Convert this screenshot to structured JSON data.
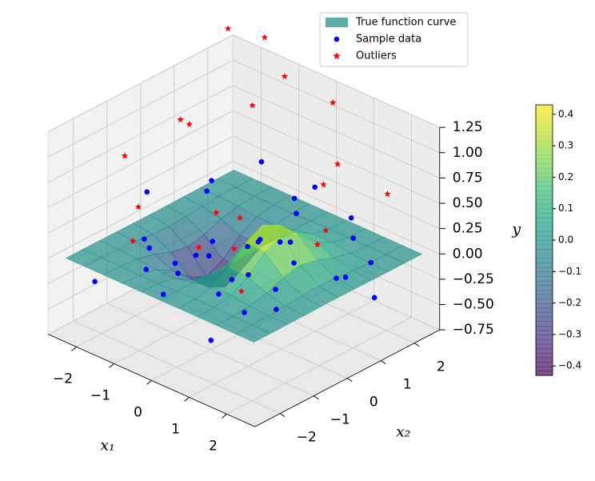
{
  "chart_data": {
    "type": "surface3d",
    "xlabel": "x₁",
    "ylabel": "x₂",
    "zlabel": "y",
    "xlim": [
      -2.75,
      2.75
    ],
    "xticks": [
      {
        "value": -2,
        "label": "−2"
      },
      {
        "value": -1,
        "label": "−1"
      },
      0,
      1,
      2
    ],
    "ylim": [
      -2.75,
      2.75
    ],
    "yticks": [
      {
        "value": -2,
        "label": "−2"
      },
      {
        "value": -1,
        "label": "−1"
      },
      0,
      1,
      2
    ],
    "zlim": [
      -0.75,
      1.25
    ],
    "zticks": [
      {
        "value": -0.75,
        "label": "−0.75"
      },
      {
        "value": -0.5,
        "label": "−0.50"
      },
      {
        "value": -0.25,
        "label": "−0.25"
      },
      {
        "value": 0,
        "label": "0.00"
      },
      0.25,
      {
        "value": 0.5,
        "label": "0.50"
      },
      0.75,
      {
        "value": 1,
        "label": "1.00"
      },
      1.25
    ],
    "grid": true,
    "legend": "upper right",
    "surface": {
      "name": "True function curve",
      "color": "#5eaca8",
      "cmap": "viridis",
      "alpha": 0.7,
      "x": [
        -2.5,
        -2,
        -1.5,
        -1,
        -0.5,
        0,
        0.5,
        1,
        1.5,
        2,
        2.5
      ],
      "y": [
        -2.5,
        -2,
        -1.5,
        -1,
        -0.5,
        0,
        0.5,
        1,
        1.5,
        2,
        2.5
      ],
      "z": [
        [
          0,
          0,
          -0.001,
          -0.002,
          -0.004,
          -0.005,
          -0.004,
          -0.002,
          -0.001,
          0,
          0
        ],
        [
          0,
          -0.001,
          -0.004,
          -0.013,
          -0.029,
          -0.037,
          -0.029,
          -0.013,
          -0.004,
          -0.001,
          0
        ],
        [
          0,
          -0.003,
          -0.017,
          -0.058,
          -0.123,
          -0.158,
          -0.123,
          -0.058,
          -0.017,
          -0.003,
          0
        ],
        [
          -0.001,
          -0.007,
          -0.039,
          -0.135,
          -0.287,
          -0.368,
          -0.287,
          -0.135,
          -0.039,
          -0.007,
          -0.001
        ],
        [
          -0.001,
          -0.007,
          -0.041,
          -0.143,
          -0.303,
          -0.389,
          -0.303,
          -0.143,
          -0.041,
          -0.007,
          -0.001
        ],
        [
          0,
          0,
          0,
          0,
          0,
          0,
          0,
          0,
          0,
          0,
          0
        ],
        [
          0.001,
          0.007,
          0.041,
          0.143,
          0.303,
          0.389,
          0.303,
          0.143,
          0.041,
          0.007,
          0.001
        ],
        [
          0.001,
          0.007,
          0.039,
          0.135,
          0.287,
          0.368,
          0.287,
          0.135,
          0.039,
          0.007,
          0.001
        ],
        [
          0,
          0.003,
          0.017,
          0.058,
          0.123,
          0.158,
          0.123,
          0.058,
          0.017,
          0.003,
          0
        ],
        [
          0,
          0.001,
          0.004,
          0.013,
          0.029,
          0.037,
          0.029,
          0.013,
          0.004,
          0.001,
          0
        ],
        [
          0,
          0,
          0.001,
          0.002,
          0.004,
          0.005,
          0.004,
          0.002,
          0.001,
          0,
          0
        ]
      ]
    },
    "series": [
      {
        "name": "Sample data",
        "color": "#0000ff",
        "marker": "circle",
        "x": [
          -2.2,
          -1.8,
          -1.5,
          -1.2,
          -0.9,
          -0.6,
          -0.3,
          0.1,
          0.4,
          0.7,
          1.0,
          1.3,
          1.6,
          1.9,
          2.2,
          -2.0,
          -1.4,
          -0.8,
          -0.2,
          0.3,
          0.9,
          1.5,
          2.1,
          -1.7,
          -1.0,
          -0.4,
          0.5,
          1.2,
          1.8,
          2.4,
          -2.4,
          -0.5,
          0.8,
          1.1,
          -1.1,
          0.0
        ],
        "y": [
          1.5,
          -0.8,
          2.2,
          0.3,
          -1.9,
          1.1,
          -0.6,
          2.0,
          -1.2,
          0.6,
          -2.1,
          1.8,
          -0.3,
          0.9,
          -1.5,
          -2.2,
          -1.4,
          2.4,
          1.3,
          -2.3,
          -0.9,
          2.1,
          0.4,
          0.8,
          1.6,
          -1.6,
          1.0,
          -0.4,
          -2.0,
          1.2,
          -0.2,
          0.2,
          2.3,
          -1.1,
          -0.2,
          -2.4
        ],
        "z": [
          0.12,
          -0.08,
          0.3,
          -0.25,
          0.05,
          -0.15,
          0.2,
          0.35,
          -0.1,
          0.15,
          -0.3,
          0.08,
          0.25,
          -0.05,
          0.1,
          -0.2,
          0.18,
          0.02,
          -0.12,
          0.28,
          0.4,
          -0.18,
          0.06,
          0.22,
          -0.28,
          0.14,
          0.33,
          -0.06,
          0.09,
          -0.22,
          0.27,
          -0.35,
          0.11,
          0.19,
          -0.14,
          0.04
        ]
      },
      {
        "name": "Outliers",
        "color": "#ff0000",
        "marker": "star",
        "x": [
          -2.3,
          -1.9,
          -1.2,
          -0.7,
          -0.2,
          0.4,
          0.9,
          1.4,
          1.9,
          2.3,
          -1.6,
          -0.9,
          0.1,
          0.7,
          1.2,
          2.0,
          -2.1,
          -0.4,
          0.5,
          1.6,
          -1.3,
          2.4
        ],
        "y": [
          2.1,
          0.5,
          -1.8,
          1.4,
          -0.6,
          2.2,
          -1.3,
          0.8,
          -2.2,
          1.7,
          -0.1,
          -2.3,
          1.1,
          -0.9,
          2.4,
          0.2,
          -1.2,
          0.7,
          -1.9,
          1.0,
          2.3,
          -0.5
        ],
        "z": [
          1.5,
          0.9,
          0.6,
          1.8,
          0.5,
          1.2,
          0.45,
          0.8,
          0.35,
          0.7,
          1.1,
          0.4,
          1.6,
          0.65,
          1.9,
          0.55,
          0.85,
          1.3,
          0.5,
          1.0,
          2.0,
          0.6
        ]
      }
    ],
    "colorbar": {
      "lim": [
        -0.43,
        0.43
      ],
      "ticks": [
        {
          "value": -0.4,
          "label": "−0.4"
        },
        {
          "value": -0.3,
          "label": "−0.3"
        },
        {
          "value": -0.2,
          "label": "−0.2"
        },
        {
          "value": -0.1,
          "label": "−0.1"
        },
        {
          "value": 0,
          "label": "0.0"
        },
        0.1,
        0.2,
        0.3,
        0.4
      ]
    }
  }
}
